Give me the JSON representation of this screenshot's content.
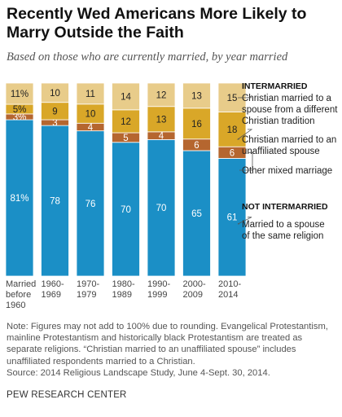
{
  "title": "Recently Wed Americans More Likely to Marry Outside the Faith",
  "subtitle": "Based on those who are currently married, by year married",
  "chart_data": {
    "type": "bar",
    "stacked": true,
    "orientation": "vertical",
    "ylim": [
      0,
      100
    ],
    "grid": false,
    "categories": [
      [
        "Married",
        "before",
        "1960"
      ],
      [
        "1960-",
        "1969"
      ],
      [
        "1970-",
        "1979"
      ],
      [
        "1980-",
        "1989"
      ],
      [
        "1990-",
        "1999"
      ],
      [
        "2000-",
        "2009"
      ],
      [
        "2010-",
        "2014"
      ]
    ],
    "series": [
      {
        "name": "Married to a spouse of the same religion",
        "color": "#1b8fc6",
        "values": [
          81,
          78,
          76,
          70,
          70,
          65,
          61
        ],
        "labels": [
          "81%",
          "78",
          "76",
          "70",
          "70",
          "65",
          "61"
        ],
        "label_color": "#ffffff"
      },
      {
        "name": "Other mixed marriage",
        "color": "#b5662f",
        "values": [
          3,
          3,
          4,
          5,
          4,
          6,
          6
        ],
        "labels": [
          "3%",
          "3",
          "4",
          "5",
          "4",
          "6",
          "6"
        ],
        "label_color": "#ffffff"
      },
      {
        "name": "Christian married to an unaffiliated spouse",
        "color": "#d9a728",
        "values": [
          5,
          9,
          10,
          12,
          13,
          16,
          18
        ],
        "labels": [
          "5%",
          "9",
          "10",
          "12",
          "13",
          "16",
          "18"
        ],
        "label_color": "#222222"
      },
      {
        "name": "Christian married to a spouse from a different Christian tradition",
        "color": "#e8cc8a",
        "values": [
          11,
          10,
          11,
          14,
          12,
          13,
          15
        ],
        "labels": [
          "11%",
          "10",
          "11",
          "14",
          "12",
          "13",
          "15"
        ],
        "label_color": "#222222"
      }
    ],
    "legend": {
      "placement": "right",
      "intermarried_heading": "INTERMARRIED",
      "not_intermarried_heading": "NOT INTERMARRIED",
      "items": [
        [
          "Christian married to a",
          "spouse from a different",
          "Christian tradition"
        ],
        [
          "Christian married to an",
          "unaffiliated spouse"
        ],
        [
          "Other mixed marriage"
        ],
        [
          "Married to a spouse",
          "of the same religion"
        ]
      ]
    }
  },
  "notes": {
    "lines": [
      "Note: Figures may not add to 100% due to rounding. Evangelical Protestantism,",
      "mainline Protestantism and historically black Protestantism are treated as",
      "separate religions. “Christian married to an unaffiliated spouse” includes",
      "unaffiliated respondents married to a Christian.",
      "Source: 2014 Religious Landscape Study, June 4-Sept. 30, 2014."
    ]
  },
  "source_org": "PEW RESEARCH CENTER"
}
